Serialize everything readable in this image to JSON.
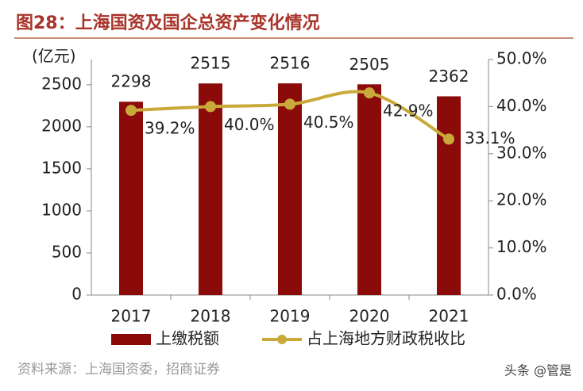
{
  "chart_data": {
    "type": "bar",
    "title": "图28：上海国资及国企总资产变化情况",
    "y_label": "(亿元)",
    "categories": [
      "2017",
      "2018",
      "2019",
      "2020",
      "2021"
    ],
    "series": [
      {
        "name": "上缴税额",
        "type": "bar",
        "color": "#8b0a0a",
        "values": [
          2298,
          2515,
          2516,
          2505,
          2362
        ]
      },
      {
        "name": "占上海地方财政税收比",
        "type": "line",
        "axis": "y2",
        "color": "#c9a93a",
        "values": [
          39.2,
          40.0,
          40.5,
          42.9,
          33.1
        ],
        "value_labels": [
          "39.2%",
          "40.0%",
          "40.5%",
          "42.9%",
          "33.1%"
        ]
      }
    ],
    "ylim": [
      0,
      2800
    ],
    "yticks": [
      0,
      500,
      1000,
      1500,
      2000,
      2500
    ],
    "y2lim": [
      0,
      50
    ],
    "y2ticks": [
      {
        "value": 0,
        "label": "0.0%"
      },
      {
        "value": 10,
        "label": "10.0%"
      },
      {
        "value": 20,
        "label": "20.0%"
      },
      {
        "value": 30,
        "label": "30.0%"
      },
      {
        "value": 40,
        "label": "40.0%"
      },
      {
        "value": 50,
        "label": "50.0%"
      }
    ]
  },
  "source": "资料来源：上海国资委，招商证券",
  "watermark": "头条 @管是"
}
